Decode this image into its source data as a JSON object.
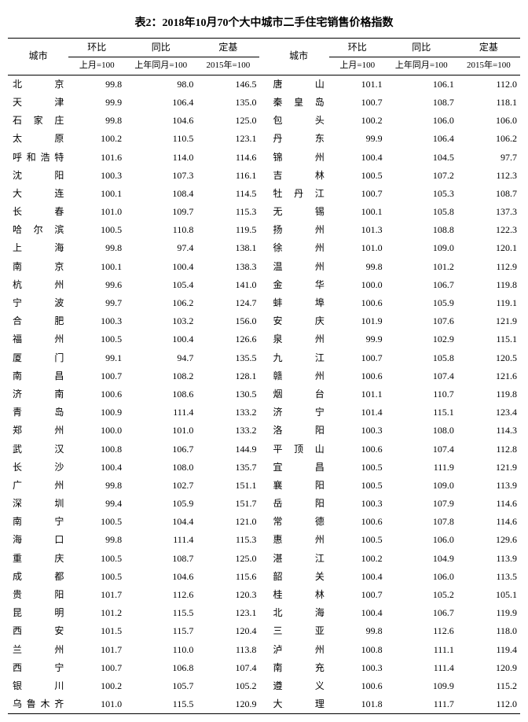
{
  "caption": "表2：2018年10月70个大中城市二手住宅销售价格指数",
  "headers": {
    "city": "城市",
    "mom": "环比",
    "yoy": "同比",
    "base": "定基",
    "mom_sub": "上月=100",
    "yoy_sub": "上年同月=100",
    "base_sub": "2015年=100"
  },
  "left": [
    {
      "c": "北京",
      "m": "99.8",
      "y": "98.0",
      "b": "146.5"
    },
    {
      "c": "天津",
      "m": "99.9",
      "y": "106.4",
      "b": "135.0"
    },
    {
      "c": "石家庄",
      "m": "99.8",
      "y": "104.6",
      "b": "125.0"
    },
    {
      "c": "太原",
      "m": "100.2",
      "y": "110.5",
      "b": "123.1"
    },
    {
      "c": "呼和浩特",
      "m": "101.6",
      "y": "114.0",
      "b": "114.6"
    },
    {
      "c": "沈阳",
      "m": "100.3",
      "y": "107.3",
      "b": "116.1"
    },
    {
      "c": "大连",
      "m": "100.1",
      "y": "108.4",
      "b": "114.5"
    },
    {
      "c": "长春",
      "m": "101.0",
      "y": "109.7",
      "b": "115.3"
    },
    {
      "c": "哈尔滨",
      "m": "100.5",
      "y": "110.8",
      "b": "119.5"
    },
    {
      "c": "上海",
      "m": "99.8",
      "y": "97.4",
      "b": "138.1"
    },
    {
      "c": "南京",
      "m": "100.1",
      "y": "100.4",
      "b": "138.3"
    },
    {
      "c": "杭州",
      "m": "99.6",
      "y": "105.4",
      "b": "141.0"
    },
    {
      "c": "宁波",
      "m": "99.7",
      "y": "106.2",
      "b": "124.7"
    },
    {
      "c": "合肥",
      "m": "100.3",
      "y": "103.2",
      "b": "156.0"
    },
    {
      "c": "福州",
      "m": "100.5",
      "y": "100.4",
      "b": "126.6"
    },
    {
      "c": "厦门",
      "m": "99.1",
      "y": "94.7",
      "b": "135.5"
    },
    {
      "c": "南昌",
      "m": "100.7",
      "y": "108.2",
      "b": "128.1"
    },
    {
      "c": "济南",
      "m": "100.6",
      "y": "108.6",
      "b": "130.5"
    },
    {
      "c": "青岛",
      "m": "100.9",
      "y": "111.4",
      "b": "133.2"
    },
    {
      "c": "郑州",
      "m": "100.0",
      "y": "101.0",
      "b": "133.2"
    },
    {
      "c": "武汉",
      "m": "100.8",
      "y": "106.7",
      "b": "144.9"
    },
    {
      "c": "长沙",
      "m": "100.4",
      "y": "108.0",
      "b": "135.7"
    },
    {
      "c": "广州",
      "m": "99.8",
      "y": "102.7",
      "b": "151.1"
    },
    {
      "c": "深圳",
      "m": "99.4",
      "y": "105.9",
      "b": "151.7"
    },
    {
      "c": "南宁",
      "m": "100.5",
      "y": "104.4",
      "b": "121.0"
    },
    {
      "c": "海口",
      "m": "99.8",
      "y": "111.4",
      "b": "115.3"
    },
    {
      "c": "重庆",
      "m": "100.5",
      "y": "108.7",
      "b": "125.0"
    },
    {
      "c": "成都",
      "m": "100.5",
      "y": "104.6",
      "b": "115.6"
    },
    {
      "c": "贵阳",
      "m": "101.7",
      "y": "112.6",
      "b": "120.3"
    },
    {
      "c": "昆明",
      "m": "101.2",
      "y": "115.5",
      "b": "123.1"
    },
    {
      "c": "西安",
      "m": "101.5",
      "y": "115.7",
      "b": "120.4"
    },
    {
      "c": "兰州",
      "m": "101.7",
      "y": "110.0",
      "b": "113.8"
    },
    {
      "c": "西宁",
      "m": "100.7",
      "y": "106.8",
      "b": "107.4"
    },
    {
      "c": "银川",
      "m": "100.2",
      "y": "105.7",
      "b": "105.2"
    },
    {
      "c": "乌鲁木齐",
      "m": "101.0",
      "y": "115.5",
      "b": "120.9"
    }
  ],
  "right": [
    {
      "c": "唐山",
      "m": "101.1",
      "y": "106.1",
      "b": "112.0"
    },
    {
      "c": "秦皇岛",
      "m": "100.7",
      "y": "108.7",
      "b": "118.1"
    },
    {
      "c": "包头",
      "m": "100.2",
      "y": "106.0",
      "b": "106.0"
    },
    {
      "c": "丹东",
      "m": "99.9",
      "y": "106.4",
      "b": "106.2"
    },
    {
      "c": "锦州",
      "m": "100.4",
      "y": "104.5",
      "b": "97.7"
    },
    {
      "c": "吉林",
      "m": "100.5",
      "y": "107.2",
      "b": "112.3"
    },
    {
      "c": "牡丹江",
      "m": "100.7",
      "y": "105.3",
      "b": "108.7"
    },
    {
      "c": "无锡",
      "m": "100.1",
      "y": "105.8",
      "b": "137.3"
    },
    {
      "c": "扬州",
      "m": "101.3",
      "y": "108.8",
      "b": "122.3"
    },
    {
      "c": "徐州",
      "m": "101.0",
      "y": "109.0",
      "b": "120.1"
    },
    {
      "c": "温州",
      "m": "99.8",
      "y": "101.2",
      "b": "112.9"
    },
    {
      "c": "金华",
      "m": "100.0",
      "y": "106.7",
      "b": "119.8"
    },
    {
      "c": "蚌埠",
      "m": "100.6",
      "y": "105.9",
      "b": "119.1"
    },
    {
      "c": "安庆",
      "m": "101.9",
      "y": "107.6",
      "b": "121.9"
    },
    {
      "c": "泉州",
      "m": "99.9",
      "y": "102.9",
      "b": "115.1"
    },
    {
      "c": "九江",
      "m": "100.7",
      "y": "105.8",
      "b": "120.5"
    },
    {
      "c": "赣州",
      "m": "100.6",
      "y": "107.4",
      "b": "121.6"
    },
    {
      "c": "烟台",
      "m": "101.1",
      "y": "110.7",
      "b": "119.8"
    },
    {
      "c": "济宁",
      "m": "101.4",
      "y": "115.1",
      "b": "123.4"
    },
    {
      "c": "洛阳",
      "m": "100.3",
      "y": "108.0",
      "b": "114.3"
    },
    {
      "c": "平顶山",
      "m": "100.6",
      "y": "107.4",
      "b": "112.8"
    },
    {
      "c": "宜昌",
      "m": "100.5",
      "y": "111.9",
      "b": "121.9"
    },
    {
      "c": "襄阳",
      "m": "100.5",
      "y": "109.0",
      "b": "113.9"
    },
    {
      "c": "岳阳",
      "m": "100.3",
      "y": "107.9",
      "b": "114.6"
    },
    {
      "c": "常德",
      "m": "100.6",
      "y": "107.8",
      "b": "114.6"
    },
    {
      "c": "惠州",
      "m": "100.5",
      "y": "106.0",
      "b": "129.6"
    },
    {
      "c": "湛江",
      "m": "100.2",
      "y": "104.9",
      "b": "113.9"
    },
    {
      "c": "韶关",
      "m": "100.4",
      "y": "106.0",
      "b": "113.5"
    },
    {
      "c": "桂林",
      "m": "100.7",
      "y": "105.2",
      "b": "105.1"
    },
    {
      "c": "北海",
      "m": "100.4",
      "y": "106.7",
      "b": "119.9"
    },
    {
      "c": "三亚",
      "m": "99.8",
      "y": "112.6",
      "b": "118.0"
    },
    {
      "c": "泸州",
      "m": "100.8",
      "y": "111.1",
      "b": "119.4"
    },
    {
      "c": "南充",
      "m": "100.3",
      "y": "111.4",
      "b": "120.9"
    },
    {
      "c": "遵义",
      "m": "100.6",
      "y": "109.9",
      "b": "115.2"
    },
    {
      "c": "大理",
      "m": "101.8",
      "y": "111.7",
      "b": "112.0"
    }
  ]
}
